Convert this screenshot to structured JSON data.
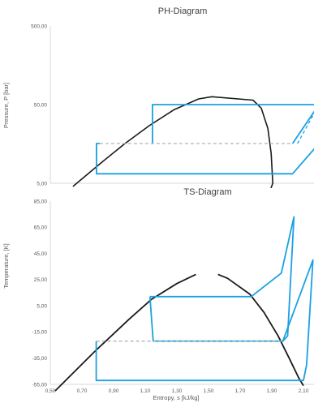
{
  "chart_data": [
    {
      "type": "line",
      "title": "PH-Diagram",
      "xlabel": "",
      "ylabel": "Pressure, P [bar]",
      "y_scale": "log",
      "y_tick_labels": [
        "500,00",
        "50,00",
        "5,00"
      ],
      "grid": false,
      "series": [
        {
          "role": "saturation-dome",
          "color": "#1a1a1a",
          "points": [
            [
              0.64,
              4.6
            ],
            [
              0.8,
              8.8
            ],
            [
              0.95,
              15.8
            ],
            [
              1.1,
              27.0
            ],
            [
              1.25,
              43.0
            ],
            [
              1.4,
              59.0
            ],
            [
              1.48,
              63.0
            ],
            [
              1.73,
              57.0
            ],
            [
              1.78,
              45.0
            ],
            [
              1.82,
              25.0
            ],
            [
              1.84,
              12.0
            ],
            [
              1.85,
              5.0
            ],
            [
              1.84,
              4.4
            ]
          ]
        },
        {
          "role": "cycle-lower-stage",
          "color": "#1ba1e2",
          "points": [
            [
              0.8,
              16.0
            ],
            [
              0.78,
              16.0
            ],
            [
              0.78,
              6.6
            ],
            [
              1.97,
              6.6
            ],
            [
              2.13,
              16.0
            ]
          ]
        },
        {
          "role": "cycle-upper-stage",
          "color": "#1ba1e2",
          "points": [
            [
              1.12,
              16.0
            ],
            [
              1.12,
              50.0
            ],
            [
              2.13,
              50.0
            ],
            [
              1.97,
              16.0
            ]
          ]
        },
        {
          "role": "compression-dashed",
          "color": "#1ba1e2",
          "dashed": true,
          "points": [
            [
              1.97,
              16.0
            ],
            [
              2.13,
              50.0
            ]
          ]
        },
        {
          "role": "compression-dashed",
          "color": "#1ba1e2",
          "dashed": true,
          "points": [
            [
              2.0,
              16.0
            ],
            [
              2.13,
              50.0
            ]
          ]
        },
        {
          "role": "intermediate-pressure",
          "color": "#b3b3b3",
          "dashed": true,
          "points": [
            [
              0.8,
              16.0
            ],
            [
              1.97,
              16.0
            ]
          ]
        }
      ]
    },
    {
      "type": "line",
      "title": "TS-Diagram",
      "xlabel": "Entropy, s [kJ/kg]",
      "ylabel": "Temperature, [K]",
      "xlim": [
        0.5,
        2.1
      ],
      "ylim": [
        -55,
        85
      ],
      "x_tick_labels": [
        "0,50",
        "0,70",
        "0,90",
        "1,10",
        "1,30",
        "1,50",
        "1,70",
        "1,90",
        "2,10"
      ],
      "y_tick_labels": [
        "85,00",
        "65,00",
        "45,00",
        "25,00",
        "5,00",
        "-15,00",
        "-35,00",
        "-55,00"
      ],
      "grid": false,
      "series": [
        {
          "role": "saturation-dome-liquid",
          "color": "#1a1a1a",
          "points": [
            [
              0.53,
              -60
            ],
            [
              0.78,
              -30
            ],
            [
              1.0,
              -5
            ],
            [
              1.14,
              10
            ],
            [
              1.3,
              22
            ],
            [
              1.42,
              29
            ]
          ]
        },
        {
          "role": "saturation-dome-vapor",
          "color": "#1a1a1a",
          "points": [
            [
              1.56,
              29
            ],
            [
              1.62,
              26
            ],
            [
              1.76,
              14
            ],
            [
              1.85,
              0
            ],
            [
              1.94,
              -18
            ],
            [
              2.01,
              -35
            ],
            [
              2.07,
              -50
            ],
            [
              2.1,
              -56
            ]
          ]
        },
        {
          "role": "cycle-high-stage",
          "color": "#1ba1e2",
          "points": [
            [
              1.13,
              12
            ],
            [
              1.77,
              12
            ],
            [
              1.96,
              30
            ],
            [
              2.04,
              73
            ],
            [
              2.0,
              -18
            ],
            [
              1.97,
              -22
            ],
            [
              1.15,
              -22
            ],
            [
              1.13,
              12
            ]
          ]
        },
        {
          "role": "cycle-low-stage",
          "color": "#1ba1e2",
          "points": [
            [
              0.79,
              -22
            ],
            [
              0.79,
              -52
            ],
            [
              2.1,
              -52
            ],
            [
              2.12,
              -40
            ],
            [
              2.14,
              0
            ],
            [
              2.16,
              40
            ],
            [
              1.97,
              -22
            ]
          ]
        },
        {
          "role": "intermediate-level",
          "color": "#b3b3b3",
          "dashed": true,
          "points": [
            [
              0.79,
              -22
            ],
            [
              1.97,
              -22
            ]
          ]
        }
      ]
    }
  ]
}
